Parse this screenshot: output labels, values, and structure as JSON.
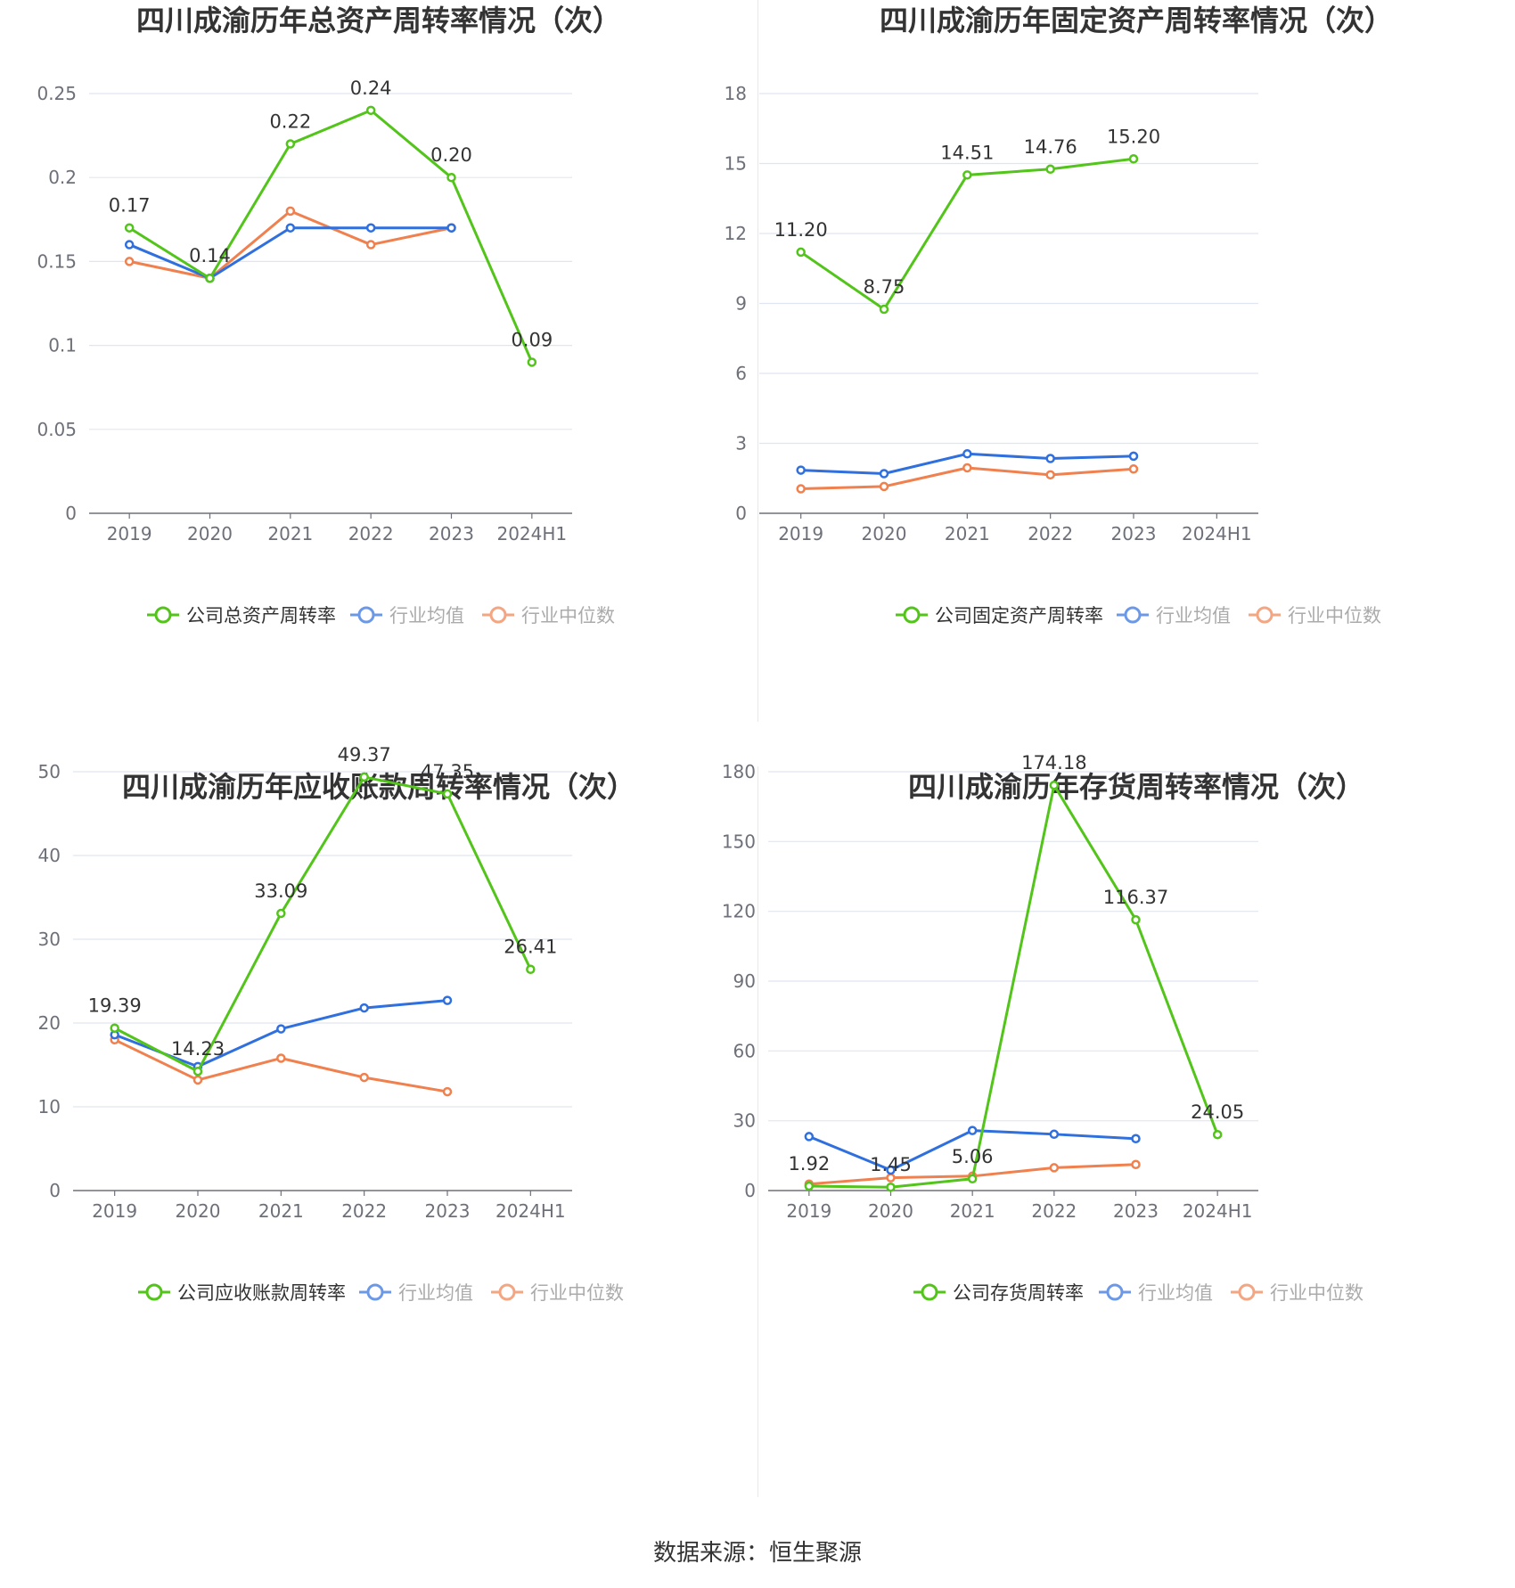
{
  "colors": {
    "company": "#52c41a",
    "avg": "#2f6fde",
    "median": "#f0804e",
    "grid": "#e0e6f1",
    "axis": "#6e7079",
    "label": "#333333",
    "tick": "#6e7079",
    "title": "#333333"
  },
  "source": "数据来源：恒生聚源",
  "chart_data": [
    {
      "type": "line",
      "title": "四川成渝历年总资产周转率情况（次）",
      "categories": [
        "2019",
        "2020",
        "2021",
        "2022",
        "2023",
        "2024H1"
      ],
      "yticks": [
        "0",
        "0.05",
        "0.1",
        "0.15",
        "0.2",
        "0.25"
      ],
      "ylim": [
        0,
        0.25
      ],
      "grid": true,
      "legend_position": "bottom",
      "series": [
        {
          "name": "公司总资产周转率",
          "role": "company",
          "values": [
            0.17,
            0.14,
            0.22,
            0.24,
            0.2,
            0.09
          ],
          "labels": [
            "0.17",
            "0.14",
            "0.22",
            "0.24",
            "0.20",
            "0.09"
          ]
        },
        {
          "name": "行业均值",
          "role": "avg",
          "values": [
            0.16,
            0.14,
            0.17,
            0.17,
            0.17,
            null
          ]
        },
        {
          "name": "行业中位数",
          "role": "median",
          "values": [
            0.15,
            0.14,
            0.18,
            0.16,
            0.17,
            null
          ]
        }
      ]
    },
    {
      "type": "line",
      "title": "四川成渝历年固定资产周转率情况（次）",
      "categories": [
        "2019",
        "2020",
        "2021",
        "2022",
        "2023",
        "2024H1"
      ],
      "yticks": [
        "0",
        "3",
        "6",
        "9",
        "12",
        "15",
        "18"
      ],
      "ylim": [
        0,
        18
      ],
      "grid": true,
      "legend_position": "bottom",
      "series": [
        {
          "name": "公司固定资产周转率",
          "role": "company",
          "values": [
            11.2,
            8.75,
            14.51,
            14.76,
            15.2,
            null
          ],
          "labels": [
            "11.20",
            "8.75",
            "14.51",
            "14.76",
            "15.20",
            null
          ]
        },
        {
          "name": "行业均值",
          "role": "avg",
          "values": [
            1.85,
            1.7,
            2.55,
            2.35,
            2.45,
            null
          ]
        },
        {
          "name": "行业中位数",
          "role": "median",
          "values": [
            1.05,
            1.15,
            1.95,
            1.65,
            1.9,
            null
          ]
        }
      ]
    },
    {
      "type": "line",
      "title": "四川成渝历年应收账款周转率情况（次）",
      "categories": [
        "2019",
        "2020",
        "2021",
        "2022",
        "2023",
        "2024H1"
      ],
      "yticks": [
        "0",
        "10",
        "20",
        "30",
        "40",
        "50"
      ],
      "ylim": [
        0,
        50
      ],
      "grid": true,
      "legend_position": "bottom",
      "series": [
        {
          "name": "公司应收账款周转率",
          "role": "company",
          "values": [
            19.39,
            14.23,
            33.09,
            49.37,
            47.35,
            26.41
          ],
          "labels": [
            "19.39",
            "14.23",
            "33.09",
            "49.37",
            "47.35",
            "26.41"
          ]
        },
        {
          "name": "行业均值",
          "role": "avg",
          "values": [
            18.6,
            14.8,
            19.3,
            21.8,
            22.7,
            null
          ]
        },
        {
          "name": "行业中位数",
          "role": "median",
          "values": [
            18.0,
            13.2,
            15.8,
            13.5,
            11.8,
            null
          ]
        }
      ]
    },
    {
      "type": "line",
      "title": "四川成渝历年存货周转率情况（次）",
      "categories": [
        "2019",
        "2020",
        "2021",
        "2022",
        "2023",
        "2024H1"
      ],
      "yticks": [
        "0",
        "30",
        "60",
        "90",
        "120",
        "150",
        "180"
      ],
      "ylim": [
        0,
        180
      ],
      "grid": true,
      "legend_position": "bottom",
      "series": [
        {
          "name": "公司存货周转率",
          "role": "company",
          "values": [
            1.92,
            1.45,
            5.06,
            174.18,
            116.37,
            24.05
          ],
          "labels": [
            "1.92",
            "1.45",
            "5.06",
            "174.18",
            "116.37",
            "24.05"
          ]
        },
        {
          "name": "行业均值",
          "role": "avg",
          "values": [
            23.2,
            8.8,
            25.8,
            24.2,
            22.3,
            null
          ]
        },
        {
          "name": "行业中位数",
          "role": "median",
          "values": [
            2.8,
            5.5,
            6.2,
            9.8,
            11.2,
            null
          ]
        }
      ]
    }
  ]
}
